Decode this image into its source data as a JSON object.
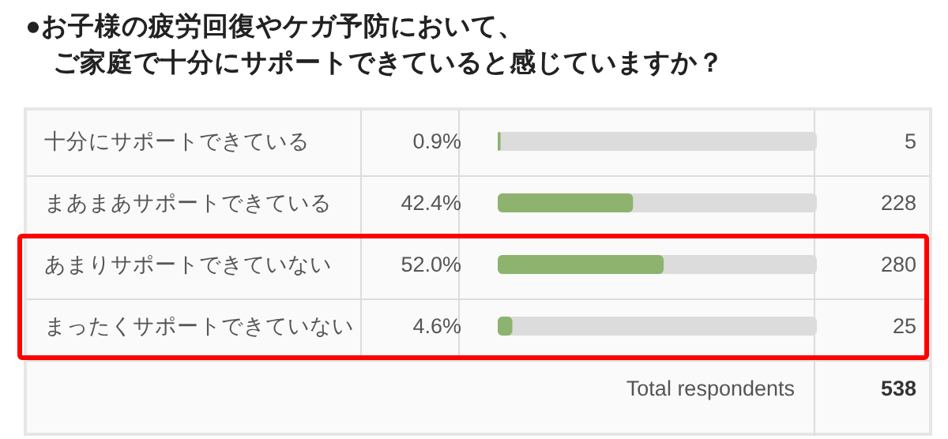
{
  "chart_data": {
    "type": "bar",
    "orientation": "horizontal",
    "title": "●お子様の疲労回復やケガ予防において、",
    "subtitle": "ご家庭で十分にサポートできていると感じていますか？",
    "categories": [
      "十分にサポートできている",
      "まあまあサポートできている",
      "あまりサポートできていない",
      "まったくサポートできていない"
    ],
    "values": [
      0.9,
      42.4,
      52.0,
      4.6
    ],
    "value_labels": [
      "0.9%",
      "42.4%",
      "52.0%",
      "4.6%"
    ],
    "color": "#8db36f",
    "xlim": [
      0,
      100
    ],
    "tick_labels": false,
    "annotations": [
      "5",
      "228",
      "280",
      "25",
      "Total respondents",
      "538"
    ]
  }
}
